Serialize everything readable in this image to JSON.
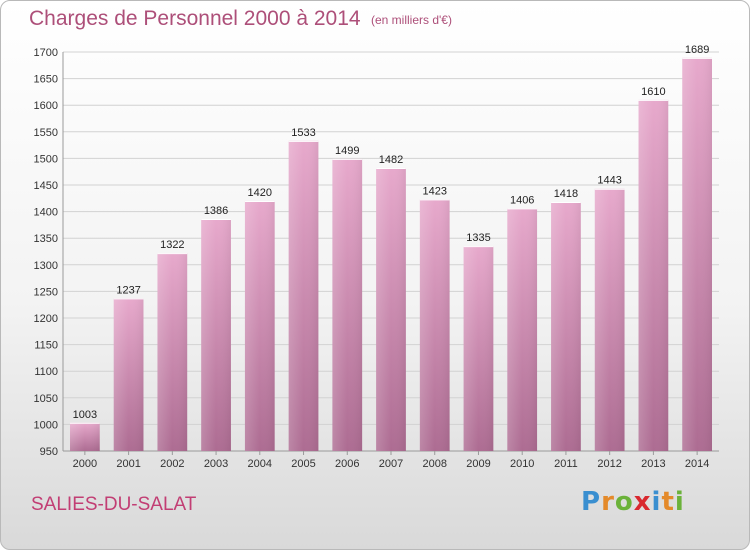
{
  "header": {
    "title": "Charges de Personnel 2000 à 2014",
    "subtitle": "(en milliers d'€)"
  },
  "footer": {
    "town": "SALIES-DU-SALAT",
    "logo_letters": [
      "P",
      "r",
      "o",
      "x",
      "i",
      "t",
      "i"
    ],
    "logo_colors": [
      "#3a8fd0",
      "#e48a2a",
      "#6bb23a",
      "#d9282f",
      "#3a8fd0",
      "#e48a2a",
      "#6bb23a"
    ]
  },
  "colors": {
    "bar_top": "#e7a9cc",
    "bar_bottom": "#ad6c92",
    "accent": "#ad4f79"
  },
  "chart_data": {
    "type": "bar",
    "title": "Charges de Personnel 2000 à 2014",
    "subtitle": "(en milliers d'€)",
    "categories": [
      "2000",
      "2001",
      "2002",
      "2003",
      "2004",
      "2005",
      "2006",
      "2007",
      "2008",
      "2009",
      "2010",
      "2011",
      "2012",
      "2013",
      "2014"
    ],
    "values": [
      1003,
      1237,
      1322,
      1386,
      1420,
      1533,
      1499,
      1482,
      1423,
      1335,
      1406,
      1418,
      1443,
      1610,
      1689
    ],
    "ylim": [
      950,
      1700
    ],
    "yticks": [
      950,
      1000,
      1050,
      1100,
      1150,
      1200,
      1250,
      1300,
      1350,
      1400,
      1450,
      1500,
      1550,
      1600,
      1650,
      1700
    ],
    "grid": true,
    "legend": "none"
  }
}
